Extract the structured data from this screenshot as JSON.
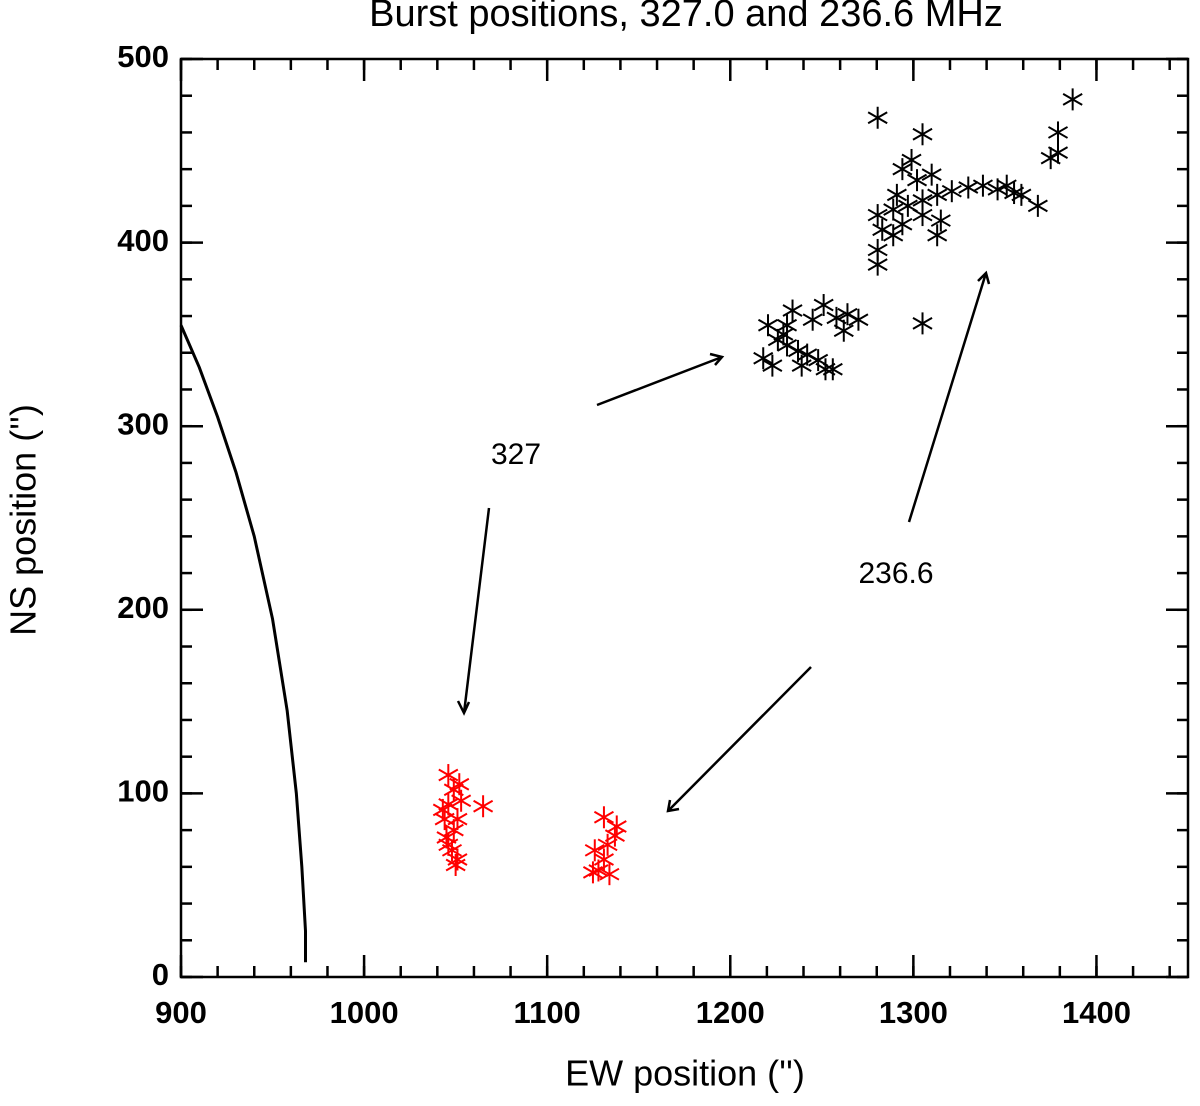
{
  "chart_data": {
    "type": "scatter",
    "title": "Burst positions, 327.0 and 236.6 MHz",
    "xlabel": "EW position ('')",
    "ylabel": "NS position ('')",
    "xlim": [
      900,
      1450
    ],
    "xticks": [
      900,
      1000,
      1100,
      1200,
      1300,
      1400
    ],
    "ylim": [
      0,
      500
    ],
    "yticks": [
      0,
      100,
      200,
      300,
      400,
      500
    ],
    "annotations": [
      "327",
      "236.6"
    ],
    "series": [
      {
        "marker": "line",
        "color": "#000000",
        "x": [
          900,
          910,
          920,
          930,
          940,
          950,
          958,
          963,
          966,
          968,
          968
        ],
        "values": [
          355,
          332,
          305,
          275,
          240,
          195,
          145,
          100,
          60,
          25,
          8
        ]
      },
      {
        "marker": "star",
        "color": "#000000",
        "x": [
          1280.5,
          1387,
          1379,
          1379,
          1375,
          1305,
          1368,
          1355,
          1346,
          1338,
          1330,
          1321,
          1313,
          1305,
          1297,
          1289,
          1280.5,
          1280.5,
          1280.5,
          1283,
          1289,
          1294,
          1299,
          1305,
          1302,
          1310,
          1315,
          1313,
          1305,
          1294,
          1291,
          1351,
          1359,
          1220.6,
          1229,
          1231,
          1237,
          1218,
          1226,
          1242,
          1248,
          1252,
          1256,
          1239,
          1223,
          1234,
          1245,
          1251,
          1258,
          1264,
          1270,
          1262,
          1231
        ],
        "values": [
          468,
          478,
          460,
          449,
          446,
          356,
          420,
          427,
          429,
          431,
          430,
          428,
          426,
          423,
          420,
          418,
          415,
          396,
          388,
          407,
          404,
          440,
          445,
          459,
          434,
          437,
          412,
          404,
          415,
          410,
          426,
          431,
          426,
          355,
          350,
          344,
          341,
          337,
          347,
          339,
          336,
          331,
          331,
          333,
          333,
          363,
          358,
          366,
          359,
          361,
          358,
          352,
          355
        ]
      },
      {
        "marker": "star",
        "color": "#ff0000",
        "x": [
          1046,
          1049,
          1046,
          1044,
          1049,
          1046,
          1051,
          1050,
          1052,
          1053,
          1045,
          1065,
          1043,
          1051,
          1048,
          1131,
          1138,
          1133,
          1126,
          1137,
          1131,
          1128,
          1134,
          1125
        ],
        "values": [
          110,
          102,
          94,
          86,
          80,
          72,
          64,
          61,
          105,
          96,
          76,
          93,
          91,
          86,
          69,
          87,
          82,
          72,
          69,
          77,
          64,
          58,
          56,
          57
        ]
      }
    ]
  }
}
